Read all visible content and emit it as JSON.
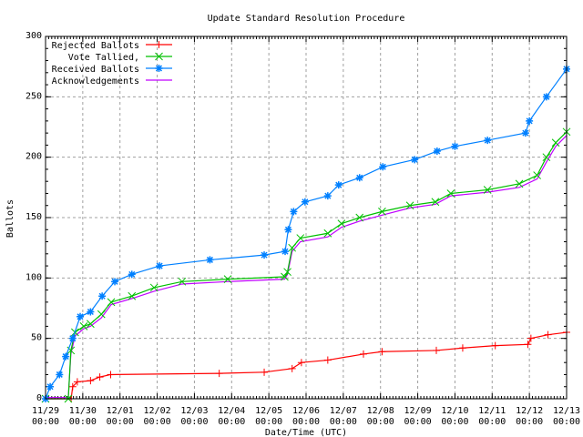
{
  "chart_data": {
    "type": "line",
    "title": "Update Standard Resolution Procedure",
    "xlabel": "Date/Time (UTC)",
    "ylabel": "Ballots",
    "xlim": [
      "11/29 00:00",
      "12/13 00:00"
    ],
    "ylim": [
      0,
      300
    ],
    "grid": true,
    "legend_position": "top-left",
    "x_ticks": [
      [
        "11/29",
        "00:00"
      ],
      [
        "11/30",
        "00:00"
      ],
      [
        "12/01",
        "00:00"
      ],
      [
        "12/02",
        "00:00"
      ],
      [
        "12/03",
        "00:00"
      ],
      [
        "12/04",
        "00:00"
      ],
      [
        "12/05",
        "00:00"
      ],
      [
        "12/06",
        "00:00"
      ],
      [
        "12/07",
        "00:00"
      ],
      [
        "12/08",
        "00:00"
      ],
      [
        "12/09",
        "00:00"
      ],
      [
        "12/10",
        "00:00"
      ],
      [
        "12/11",
        "00:00"
      ],
      [
        "12/12",
        "00:00"
      ],
      [
        "12/13",
        "00:00"
      ]
    ],
    "y_ticks": [
      0,
      50,
      100,
      150,
      200,
      250,
      300
    ],
    "series": [
      {
        "name": "Rejected Ballots",
        "color": "#ff0000",
        "marker": "plus",
        "points": [
          [
            "11/29 00:00",
            0
          ],
          [
            "11/29 16:30",
            0
          ],
          [
            "11/29 17:30",
            10
          ],
          [
            "11/29 20:30",
            14
          ],
          [
            "11/30 05:00",
            15
          ],
          [
            "11/30 11:00",
            18
          ],
          [
            "11/30 18:00",
            20
          ],
          [
            "12/03 16:00",
            21
          ],
          [
            "12/04 21:00",
            22
          ],
          [
            "12/05 15:00",
            25
          ],
          [
            "12/05 21:00",
            30
          ],
          [
            "12/06 14:00",
            32
          ],
          [
            "12/07 13:00",
            37
          ],
          [
            "12/08 01:00",
            39
          ],
          [
            "12/09 12:00",
            40
          ],
          [
            "12/10 05:00",
            42
          ],
          [
            "12/11 02:00",
            44
          ],
          [
            "12/11 23:00",
            45
          ],
          [
            "12/12 01:00",
            50
          ],
          [
            "12/12 12:00",
            53
          ],
          [
            "12/13 00:00",
            55
          ]
        ]
      },
      {
        "name": "Vote Tallied,",
        "color": "#00c000",
        "marker": "x",
        "points": [
          [
            "11/29 00:00",
            0
          ],
          [
            "11/29 14:40",
            0
          ],
          [
            "11/29 16:20",
            40
          ],
          [
            "11/29 19:00",
            55
          ],
          [
            "11/30 00:40",
            60
          ],
          [
            "11/30 05:00",
            62
          ],
          [
            "11/30 12:00",
            70
          ],
          [
            "11/30 18:20",
            80
          ],
          [
            "12/01 07:40",
            85
          ],
          [
            "12/01 22:00",
            92
          ],
          [
            "12/02 16:00",
            97
          ],
          [
            "12/03 21:30",
            99
          ],
          [
            "12/05 10:10",
            101
          ],
          [
            "12/05 12:00",
            105
          ],
          [
            "12/05 15:00",
            125
          ],
          [
            "12/05 20:20",
            133
          ],
          [
            "12/06 14:00",
            137
          ],
          [
            "12/06 22:50",
            145
          ],
          [
            "12/07 10:30",
            150
          ],
          [
            "12/08 01:00",
            155
          ],
          [
            "12/08 19:00",
            160
          ],
          [
            "12/09 11:20",
            163
          ],
          [
            "12/09 21:20",
            170
          ],
          [
            "12/10 21:00",
            173
          ],
          [
            "12/11 17:30",
            178
          ],
          [
            "12/12 05:00",
            185
          ],
          [
            "12/12 11:00",
            200
          ],
          [
            "12/12 17:00",
            212
          ],
          [
            "12/13 00:00",
            221
          ]
        ]
      },
      {
        "name": "Received Ballots",
        "color": "#0080ff",
        "marker": "star",
        "points": [
          [
            "11/29 00:00",
            0
          ],
          [
            "11/29 03:00",
            10
          ],
          [
            "11/29 09:00",
            20
          ],
          [
            "11/29 13:00",
            35
          ],
          [
            "11/29 17:30",
            50
          ],
          [
            "11/29 22:20",
            68
          ],
          [
            "11/30 05:00",
            72
          ],
          [
            "11/30 12:30",
            85
          ],
          [
            "11/30 20:40",
            97
          ],
          [
            "12/01 07:40",
            103
          ],
          [
            "12/02 01:30",
            110
          ],
          [
            "12/03 10:00",
            115
          ],
          [
            "12/04 21:00",
            119
          ],
          [
            "12/05 10:30",
            122
          ],
          [
            "12/05 12:30",
            140
          ],
          [
            "12/05 16:00",
            155
          ],
          [
            "12/05 23:20",
            163
          ],
          [
            "12/06 14:00",
            168
          ],
          [
            "12/06 21:00",
            177
          ],
          [
            "12/07 10:30",
            183
          ],
          [
            "12/08 01:30",
            192
          ],
          [
            "12/08 22:00",
            198
          ],
          [
            "12/09 12:30",
            205
          ],
          [
            "12/10 00:00",
            209
          ],
          [
            "12/10 21:00",
            214
          ],
          [
            "12/11 21:30",
            220
          ],
          [
            "12/12 00:00",
            230
          ],
          [
            "12/12 11:00",
            250
          ],
          [
            "12/13 00:00",
            273
          ]
        ]
      },
      {
        "name": "Acknowledgements",
        "color": "#c000ff",
        "marker": "none",
        "points": [
          [
            "11/29 00:00",
            1
          ],
          [
            "11/29 14:40",
            1
          ],
          [
            "11/29 16:20",
            37
          ],
          [
            "11/29 19:00",
            52
          ],
          [
            "11/30 00:40",
            58
          ],
          [
            "11/30 05:00",
            60
          ],
          [
            "11/30 12:00",
            67
          ],
          [
            "11/30 18:20",
            78
          ],
          [
            "12/01 07:40",
            83
          ],
          [
            "12/01 22:00",
            89
          ],
          [
            "12/02 16:00",
            95
          ],
          [
            "12/03 21:30",
            97
          ],
          [
            "12/05 10:10",
            99
          ],
          [
            "12/05 12:00",
            103
          ],
          [
            "12/05 15:00",
            122
          ],
          [
            "12/05 20:20",
            130
          ],
          [
            "12/06 14:00",
            134
          ],
          [
            "12/06 22:50",
            142
          ],
          [
            "12/07 10:30",
            147
          ],
          [
            "12/08 01:00",
            152
          ],
          [
            "12/08 19:00",
            158
          ],
          [
            "12/09 11:20",
            161
          ],
          [
            "12/09 21:20",
            168
          ],
          [
            "12/10 21:00",
            171
          ],
          [
            "12/11 17:30",
            175
          ],
          [
            "12/12 05:00",
            182
          ],
          [
            "12/12 11:00",
            196
          ],
          [
            "12/12 17:00",
            209
          ],
          [
            "12/13 00:00",
            218
          ]
        ]
      }
    ]
  }
}
